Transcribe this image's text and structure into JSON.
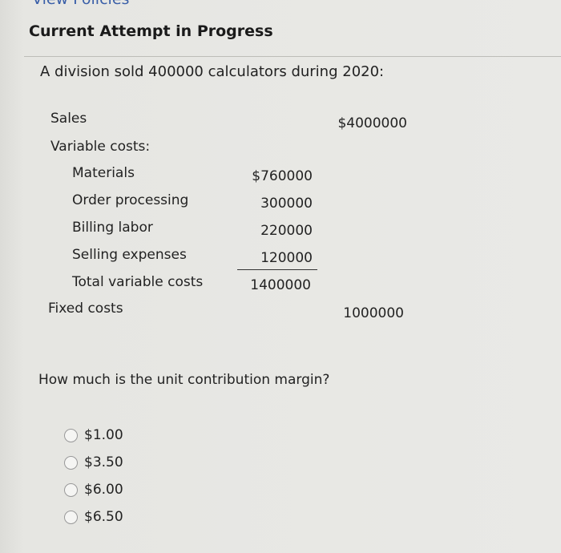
{
  "header": {
    "link": "View Policies",
    "title": "Current Attempt in Progress"
  },
  "question": {
    "intro": "A division sold 400000 calculators during 2020:",
    "prompt": "How much is the unit contribution margin?"
  },
  "table": {
    "sales_label": "Sales",
    "sales_value": "$4000000",
    "variable_label": "Variable costs:",
    "items": [
      {
        "label": "Materials",
        "value": "$760000"
      },
      {
        "label": "Order processing",
        "value": "300000"
      },
      {
        "label": "Billing labor",
        "value": "220000"
      },
      {
        "label": "Selling expenses",
        "value": "120000"
      }
    ],
    "total_label": "Total variable costs",
    "total_value": "1400000",
    "fixed_label": "Fixed costs",
    "fixed_value": "1000000"
  },
  "options": [
    "$1.00",
    "$3.50",
    "$6.00",
    "$6.50"
  ]
}
